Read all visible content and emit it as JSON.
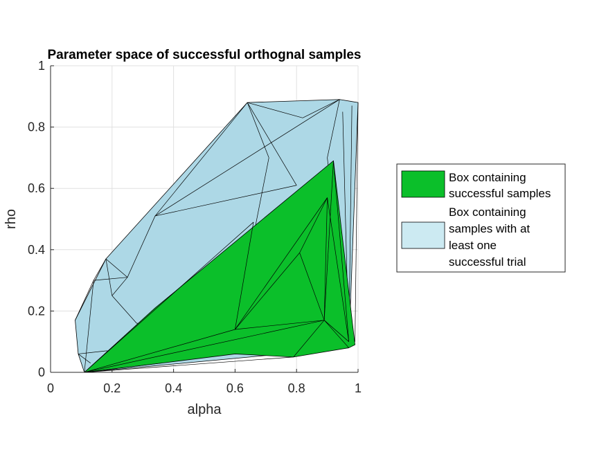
{
  "chart_data": {
    "type": "area",
    "title": "Parameter space of successful orthognal samples",
    "xlabel": "alpha",
    "ylabel": "rho",
    "xlim": [
      0,
      1
    ],
    "ylim": [
      0,
      1
    ],
    "xticks": [
      "0",
      "0.2",
      "0.4",
      "0.6",
      "0.8",
      "1"
    ],
    "yticks": [
      "0",
      "0.2",
      "0.4",
      "0.6",
      "0.8",
      "1"
    ],
    "grid": true,
    "legend_position": "outside-right",
    "series": [
      {
        "name": "Box containing samples with at least one successful trial",
        "legend_lines": [
          "Box containing",
          "samples with at",
          "least one",
          "successful trial"
        ],
        "color": "#add8e6",
        "points": [
          [
            0.11,
            0.0
          ],
          [
            0.97,
            0.08
          ],
          [
            1.0,
            0.88
          ],
          [
            0.94,
            0.89
          ],
          [
            0.64,
            0.88
          ],
          [
            0.18,
            0.37
          ],
          [
            0.08,
            0.17
          ],
          [
            0.09,
            0.06
          ]
        ],
        "internal_edges": [
          [
            [
              0.64,
              0.88
            ],
            [
              0.34,
              0.51
            ]
          ],
          [
            [
              0.64,
              0.88
            ],
            [
              0.71,
              0.7
            ]
          ],
          [
            [
              0.64,
              0.88
            ],
            [
              0.8,
              0.61
            ]
          ],
          [
            [
              0.64,
              0.88
            ],
            [
              0.82,
              0.83
            ]
          ],
          [
            [
              0.94,
              0.89
            ],
            [
              0.34,
              0.51
            ]
          ],
          [
            [
              0.94,
              0.89
            ],
            [
              0.9,
              0.7
            ]
          ],
          [
            [
              0.94,
              0.89
            ],
            [
              0.82,
              0.83
            ]
          ],
          [
            [
              0.34,
              0.51
            ],
            [
              0.25,
              0.31
            ]
          ],
          [
            [
              0.34,
              0.51
            ],
            [
              0.8,
              0.61
            ]
          ],
          [
            [
              0.25,
              0.31
            ],
            [
              0.18,
              0.37
            ]
          ],
          [
            [
              0.18,
              0.37
            ],
            [
              0.14,
              0.3
            ]
          ],
          [
            [
              0.14,
              0.3
            ],
            [
              0.25,
              0.31
            ]
          ],
          [
            [
              0.14,
              0.3
            ],
            [
              0.11,
              0.0
            ]
          ],
          [
            [
              0.18,
              0.37
            ],
            [
              0.2,
              0.25
            ]
          ],
          [
            [
              0.2,
              0.25
            ],
            [
              0.25,
              0.31
            ]
          ],
          [
            [
              0.2,
              0.25
            ],
            [
              0.28,
              0.16
            ]
          ],
          [
            [
              0.28,
              0.16
            ],
            [
              0.6,
              0.14
            ]
          ],
          [
            [
              0.71,
              0.7
            ],
            [
              0.6,
              0.14
            ]
          ],
          [
            [
              0.09,
              0.06
            ],
            [
              0.18,
              0.07
            ]
          ],
          [
            [
              0.18,
              0.07
            ],
            [
              0.97,
              0.08
            ]
          ],
          [
            [
              0.08,
              0.17
            ],
            [
              0.14,
              0.3
            ]
          ],
          [
            [
              0.09,
              0.06
            ],
            [
              0.13,
              0.03
            ]
          ],
          [
            [
              0.98,
              0.87
            ],
            [
              0.97,
              0.08
            ]
          ],
          [
            [
              1.0,
              0.88
            ],
            [
              0.99,
              0.1
            ]
          ],
          [
            [
              0.95,
              0.85
            ],
            [
              0.97,
              0.08
            ]
          ],
          [
            [
              0.9,
              0.7
            ],
            [
              0.97,
              0.1
            ]
          ]
        ]
      },
      {
        "name": "Box containing successful samples",
        "legend_lines": [
          "Box containing",
          "successful samples"
        ],
        "color": "#0bbf2a",
        "points": [
          [
            0.11,
            0.0
          ],
          [
            0.36,
            0.03
          ],
          [
            0.6,
            0.06
          ],
          [
            0.79,
            0.05
          ],
          [
            0.97,
            0.08
          ],
          [
            0.99,
            0.09
          ],
          [
            0.92,
            0.69
          ],
          [
            0.34,
            0.21
          ]
        ],
        "internal_edges": [
          [
            [
              0.11,
              0.0
            ],
            [
              0.66,
              0.49
            ]
          ],
          [
            [
              0.11,
              0.0
            ],
            [
              0.6,
              0.14
            ]
          ],
          [
            [
              0.11,
              0.0
            ],
            [
              0.89,
              0.17
            ]
          ],
          [
            [
              0.11,
              0.0
            ],
            [
              0.36,
              0.03
            ]
          ],
          [
            [
              0.11,
              0.0
            ],
            [
              0.79,
              0.05
            ]
          ],
          [
            [
              0.6,
              0.14
            ],
            [
              0.89,
              0.17
            ]
          ],
          [
            [
              0.6,
              0.14
            ],
            [
              0.66,
              0.49
            ]
          ],
          [
            [
              0.6,
              0.14
            ],
            [
              0.81,
              0.39
            ]
          ],
          [
            [
              0.6,
              0.14
            ],
            [
              0.9,
              0.57
            ]
          ],
          [
            [
              0.81,
              0.39
            ],
            [
              0.89,
              0.17
            ]
          ],
          [
            [
              0.81,
              0.39
            ],
            [
              0.9,
              0.57
            ]
          ],
          [
            [
              0.9,
              0.57
            ],
            [
              0.89,
              0.17
            ]
          ],
          [
            [
              0.9,
              0.57
            ],
            [
              0.97,
              0.1
            ]
          ],
          [
            [
              0.89,
              0.17
            ],
            [
              0.97,
              0.1
            ]
          ],
          [
            [
              0.92,
              0.69
            ],
            [
              0.89,
              0.17
            ]
          ],
          [
            [
              0.92,
              0.69
            ],
            [
              0.97,
              0.1
            ]
          ],
          [
            [
              0.89,
              0.17
            ],
            [
              0.79,
              0.05
            ]
          ],
          [
            [
              0.89,
              0.17
            ],
            [
              0.97,
              0.08
            ]
          ]
        ]
      }
    ]
  }
}
